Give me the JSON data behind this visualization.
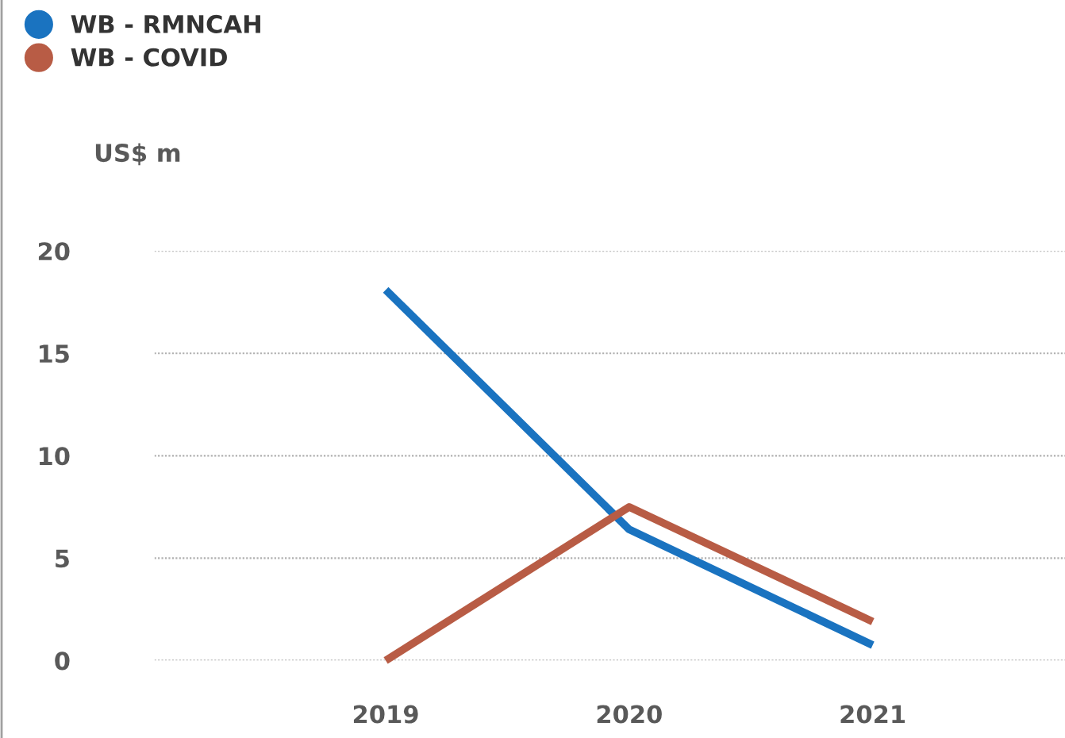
{
  "chart_data": {
    "type": "line",
    "ylabel": "US$ m",
    "categories": [
      "2019",
      "2020",
      "2021"
    ],
    "series": [
      {
        "name": "WB - RMNCAH",
        "color": "#1a73c0",
        "values": [
          18.1,
          6.4,
          0.75
        ]
      },
      {
        "name": "WB - COVID",
        "color": "#b85c45",
        "values": [
          0,
          7.5,
          1.9
        ]
      }
    ],
    "ylim": [
      0,
      20
    ],
    "yticks": [
      0,
      5,
      10,
      15,
      20
    ],
    "grid": "y",
    "legend": "top left",
    "marker": "none",
    "line_style": "solid"
  }
}
